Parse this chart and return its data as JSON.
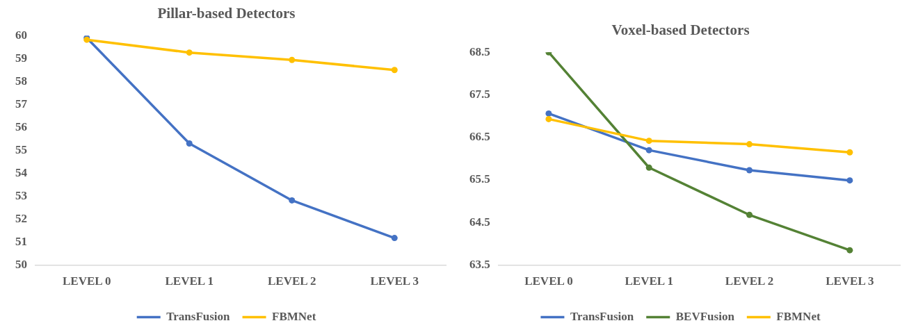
{
  "chart_data": [
    {
      "type": "line",
      "title": "Pillar-based Detectors",
      "categories": [
        "LEVEL 0",
        "LEVEL 1",
        "LEVEL 2",
        "LEVEL 3"
      ],
      "series": [
        {
          "name": "TransFusion",
          "color": "#4472c4",
          "values": [
            59.9,
            55.3,
            52.82,
            51.18
          ]
        },
        {
          "name": "FBMNet",
          "color": "#ffc000",
          "values": [
            59.82,
            59.26,
            58.94,
            58.5
          ]
        }
      ],
      "ylim": [
        50,
        60
      ],
      "yticks": [
        50,
        51,
        52,
        53,
        54,
        55,
        56,
        57,
        58,
        59,
        60
      ],
      "grid": false,
      "legend": "bottom",
      "marker": "circle",
      "line_style": "solid"
    },
    {
      "type": "line",
      "title": "Voxel-based Detectors",
      "categories": [
        "LEVEL 0",
        "LEVEL 1",
        "LEVEL 2",
        "LEVEL 3"
      ],
      "series": [
        {
          "name": "TransFusion",
          "color": "#4472c4",
          "values": [
            67.06,
            66.2,
            65.73,
            65.49
          ]
        },
        {
          "name": "BEVFusion",
          "color": "#548235",
          "values": [
            68.5,
            65.79,
            64.68,
            63.85
          ]
        },
        {
          "name": "FBMNet",
          "color": "#ffc000",
          "values": [
            66.93,
            66.42,
            66.34,
            66.15
          ]
        }
      ],
      "ylim": [
        63.5,
        68.5
      ],
      "yticks": [
        63.5,
        64.5,
        65.5,
        66.5,
        67.5,
        68.5
      ],
      "grid": false,
      "legend": "bottom",
      "marker": "circle",
      "line_style": "solid"
    }
  ]
}
